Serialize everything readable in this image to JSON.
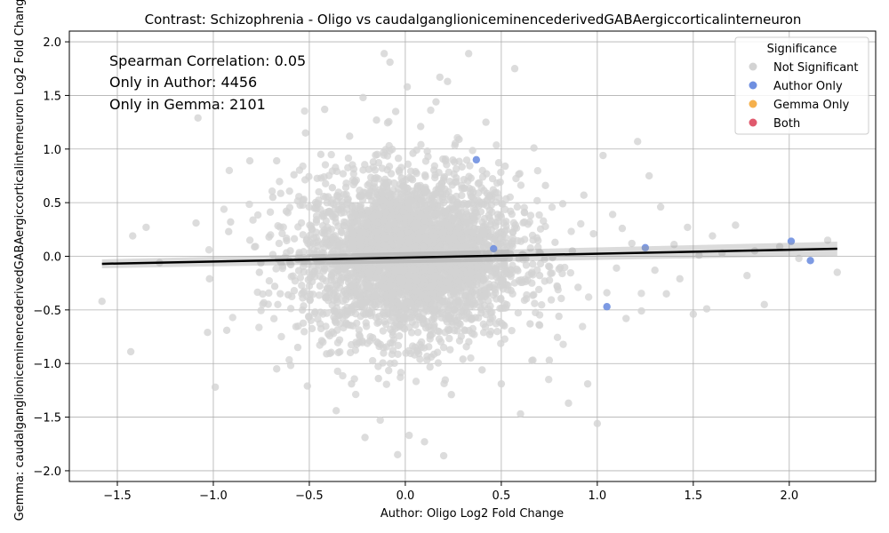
{
  "chart_data": {
    "type": "scatter",
    "title": "Contrast: Schizophrenia - Oligo vs caudalganglioniceminencederivedGABAergiccorticalinterneuron",
    "xlabel": "Author: Oligo Log2 Fold Change",
    "ylabel": "Gemma: caudalganglioniceminencederivedGABAergiccorticalinterneuron Log2 Fold Change",
    "xlim": [
      -1.75,
      2.45
    ],
    "ylim": [
      -2.1,
      2.1
    ],
    "xticks": [
      -1.5,
      -1.0,
      -0.5,
      0.0,
      0.5,
      1.0,
      1.5,
      2.0
    ],
    "xtick_labels": [
      "−1.5",
      "−1.0",
      "−0.5",
      "0.0",
      "0.5",
      "1.0",
      "1.5",
      "2.0"
    ],
    "yticks": [
      -2.0,
      -1.5,
      -1.0,
      -0.5,
      0.0,
      0.5,
      1.0,
      1.5,
      2.0
    ],
    "ytick_labels": [
      "−2.0",
      "−1.5",
      "−1.0",
      "−0.5",
      "0.0",
      "0.5",
      "1.0",
      "1.5",
      "2.0"
    ],
    "grid": true,
    "legend": {
      "title": "Significance",
      "placement": "top-right",
      "entries": [
        {
          "label": "Not Significant",
          "color": "#d3d3d3"
        },
        {
          "label": "Author Only",
          "color": "#6f8fe0"
        },
        {
          "label": "Gemma Only",
          "color": "#f5b04c"
        },
        {
          "label": "Both",
          "color": "#e05a6e"
        }
      ]
    },
    "annotations": [
      "Spearman Correlation: 0.05",
      "Only in Author: 4456",
      "Only in Gemma: 2101"
    ],
    "regression_line": {
      "x": [
        -1.58,
        2.25
      ],
      "y": [
        -0.07,
        0.07
      ],
      "color": "#000000"
    },
    "series": [
      {
        "name": "Not Significant",
        "color": "#d3d3d3",
        "points": [
          [
            -1.58,
            -0.42
          ],
          [
            -1.42,
            0.19
          ],
          [
            -1.35,
            0.27
          ],
          [
            -1.43,
            -0.89
          ],
          [
            -1.28,
            -0.06
          ],
          [
            -1.08,
            1.29
          ],
          [
            -1.09,
            0.31
          ],
          [
            -1.02,
            -0.21
          ],
          [
            -1.03,
            -0.71
          ],
          [
            -0.99,
            -1.22
          ],
          [
            -0.92,
            0.23
          ],
          [
            -0.91,
            0.32
          ],
          [
            -0.93,
            -0.69
          ],
          [
            -0.81,
            0.89
          ],
          [
            -0.76,
            -0.15
          ],
          [
            -0.71,
            0.18
          ],
          [
            -0.69,
            0.55
          ],
          [
            -0.68,
            -0.28
          ],
          [
            -0.67,
            0.89
          ],
          [
            -0.67,
            -1.05
          ],
          [
            -0.62,
            0.42
          ],
          [
            -0.61,
            -0.36
          ],
          [
            -0.58,
            0.76
          ],
          [
            -0.56,
            -0.85
          ],
          [
            -0.52,
            1.15
          ],
          [
            -0.51,
            -1.21
          ],
          [
            -0.49,
            0.28
          ],
          [
            -0.47,
            -0.52
          ],
          [
            -0.44,
            0.95
          ],
          [
            -0.43,
            -0.21
          ],
          [
            -0.42,
            1.37
          ],
          [
            -0.41,
            -0.91
          ],
          [
            -0.38,
            0.64
          ],
          [
            -0.36,
            -1.44
          ],
          [
            -0.33,
            0.12
          ],
          [
            -0.31,
            -0.63
          ],
          [
            -0.29,
            1.12
          ],
          [
            -0.28,
            -1.19
          ],
          [
            -0.26,
            0.47
          ],
          [
            -0.24,
            -0.34
          ],
          [
            -0.22,
            1.48
          ],
          [
            -0.21,
            -1.69
          ],
          [
            -0.19,
            0.81
          ],
          [
            -0.17,
            -0.76
          ],
          [
            -0.15,
            1.27
          ],
          [
            -0.14,
            -1.14
          ],
          [
            -0.12,
            0.59
          ],
          [
            -0.11,
            1.89
          ],
          [
            -0.08,
            1.81
          ],
          [
            -0.07,
            -0.48
          ],
          [
            -0.05,
            1.35
          ],
          [
            -0.04,
            -1.85
          ],
          [
            -0.02,
            0.73
          ],
          [
            0.01,
            1.58
          ],
          [
            0.02,
            -1.67
          ],
          [
            0.04,
            0.96
          ],
          [
            0.06,
            -0.88
          ],
          [
            0.08,
            1.21
          ],
          [
            0.1,
            -1.73
          ],
          [
            0.12,
            0.38
          ],
          [
            0.14,
            -0.59
          ],
          [
            0.16,
            1.44
          ],
          [
            0.18,
            1.67
          ],
          [
            0.2,
            -1.86
          ],
          [
            0.22,
            1.63
          ],
          [
            0.24,
            -1.29
          ],
          [
            0.26,
            0.69
          ],
          [
            0.28,
            1.09
          ],
          [
            0.3,
            -0.96
          ],
          [
            0.33,
            1.89
          ],
          [
            0.35,
            -0.41
          ],
          [
            0.38,
            0.52
          ],
          [
            0.4,
            -1.06
          ],
          [
            0.42,
            1.25
          ],
          [
            0.44,
            -0.73
          ],
          [
            0.47,
            0.28
          ],
          [
            0.5,
            -1.19
          ],
          [
            0.52,
            0.84
          ],
          [
            0.55,
            -0.32
          ],
          [
            0.57,
            1.75
          ],
          [
            0.6,
            -1.47
          ],
          [
            0.62,
            0.41
          ],
          [
            0.65,
            -0.63
          ],
          [
            0.67,
            1.01
          ],
          [
            0.7,
            -0.18
          ],
          [
            0.73,
            0.66
          ],
          [
            0.75,
            -0.97
          ],
          [
            0.78,
            0.13
          ],
          [
            0.8,
            -0.56
          ],
          [
            0.82,
            0.49
          ],
          [
            0.85,
            -1.37
          ],
          [
            0.87,
            0.05
          ],
          [
            0.9,
            -0.29
          ],
          [
            0.93,
            0.57
          ],
          [
            0.95,
            -1.19
          ],
          [
            0.98,
            0.21
          ],
          [
            1.0,
            -1.56
          ],
          [
            1.03,
            0.94
          ],
          [
            1.05,
            -0.34
          ],
          [
            1.08,
            0.39
          ],
          [
            1.1,
            -0.11
          ],
          [
            1.13,
            0.26
          ],
          [
            1.15,
            -0.58
          ],
          [
            1.18,
            0.12
          ],
          [
            1.21,
            1.07
          ],
          [
            1.23,
            -0.51
          ],
          [
            1.27,
            0.75
          ],
          [
            1.3,
            -0.13
          ],
          [
            1.33,
            0.46
          ],
          [
            1.36,
            -0.35
          ],
          [
            1.4,
            0.11
          ],
          [
            1.43,
            -0.21
          ],
          [
            1.47,
            0.27
          ],
          [
            1.5,
            -0.54
          ],
          [
            1.53,
            0.01
          ],
          [
            1.57,
            -0.49
          ],
          [
            1.6,
            0.19
          ],
          [
            1.65,
            0.03
          ],
          [
            1.72,
            0.29
          ],
          [
            1.78,
            -0.18
          ],
          [
            1.82,
            0.05
          ],
          [
            1.87,
            -0.45
          ],
          [
            1.95,
            0.09
          ],
          [
            2.05,
            -0.02
          ],
          [
            2.2,
            0.15
          ],
          [
            2.25,
            -0.15
          ]
        ]
      },
      {
        "name": "Author Only",
        "color": "#6f8fe0",
        "points": [
          [
            0.37,
            0.9
          ],
          [
            1.05,
            -0.47
          ],
          [
            1.25,
            0.08
          ],
          [
            2.01,
            0.14
          ],
          [
            2.11,
            -0.04
          ],
          [
            0.46,
            0.07
          ]
        ]
      }
    ]
  }
}
